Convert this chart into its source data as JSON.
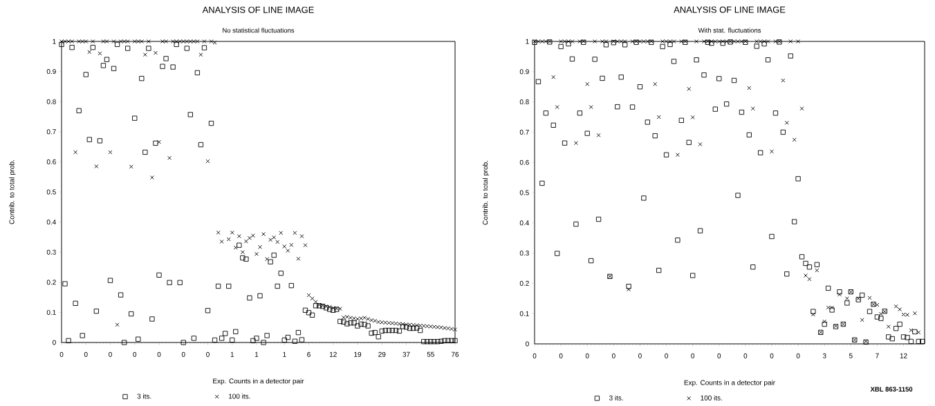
{
  "chart_data": [
    {
      "type": "scatter",
      "title": "ANALYSIS OF LINE IMAGE",
      "subtitle": "No statistical fluctuations",
      "xlabel": "Exp. Counts in a detector pair",
      "ylabel": "Contrib. to total prob.",
      "legend": "bottom",
      "categories": [
        "0",
        null,
        null,
        null,
        null,
        null,
        null,
        "0",
        null,
        null,
        null,
        null,
        null,
        null,
        "0",
        null,
        null,
        null,
        null,
        null,
        null,
        "0",
        null,
        null,
        null,
        null,
        null,
        null,
        "0",
        null,
        null,
        null,
        null,
        null,
        null,
        "0",
        null,
        null,
        null,
        null,
        null,
        null,
        "0",
        null,
        null,
        null,
        null,
        null,
        null,
        "1",
        null,
        null,
        null,
        null,
        null,
        null,
        "1",
        null,
        null,
        null,
        null,
        null,
        null,
        null,
        "1",
        null,
        null,
        null,
        null,
        null,
        null,
        "6",
        null,
        null,
        null,
        null,
        null,
        null,
        "12",
        null,
        null,
        null,
        null,
        null,
        null,
        "19",
        null,
        null,
        null,
        null,
        null,
        null,
        "29",
        null,
        null,
        null,
        null,
        null,
        null,
        "37",
        null,
        null,
        null,
        null,
        null,
        null,
        "55",
        null,
        null,
        null,
        null,
        null,
        null,
        "76"
      ],
      "ylim": [
        0,
        1
      ],
      "yticks": [
        0,
        0.1,
        0.2,
        0.3,
        0.4,
        0.5,
        0.6,
        0.7,
        0.8,
        0.9,
        1
      ],
      "series": [
        {
          "name": "3 its.",
          "color": "#000000",
          "marker": "square",
          "values": [
            0.99,
            0.195,
            0.006,
            0.98,
            0.13,
            0.77,
            0.023,
            0.89,
            0.674,
            0.98,
            0.104,
            0.67,
            0.92,
            0.94,
            0.206,
            0.91,
            0.99,
            0.158,
            0.0,
            0.977,
            0.095,
            0.745,
            0.011,
            0.877,
            0.632,
            0.977,
            0.078,
            0.662,
            0.224,
            0.917,
            0.943,
            0.199,
            0.915,
            0.99,
            0.199,
            0.0,
            0.977,
            0.757,
            0.014,
            0.896,
            0.657,
            0.979,
            0.106,
            0.728,
            0.008,
            0.187,
            0.014,
            0.03,
            0.187,
            0.008,
            0.036,
            0.323,
            0.281,
            0.277,
            0.148,
            0.006,
            0.014,
            0.155,
            0.0,
            0.023,
            0.268,
            0.29,
            0.187,
            0.23,
            0.008,
            0.017,
            0.189,
            0.004,
            0.033,
            0.009,
            0.107,
            0.099,
            0.091,
            0.122,
            0.122,
            0.12,
            0.115,
            0.11,
            0.107,
            0.11,
            0.07,
            0.068,
            0.062,
            0.065,
            0.065,
            0.055,
            0.061,
            0.06,
            0.055,
            0.031,
            0.033,
            0.019,
            0.038,
            0.04,
            0.04,
            0.04,
            0.04,
            0.038,
            0.053,
            0.051,
            0.047,
            0.047,
            0.048,
            0.04,
            0.003,
            0.003,
            0.003,
            0.003,
            0.003,
            0.004,
            0.006,
            0.006,
            0.006,
            0.006
          ]
        },
        {
          "name": "100 its.",
          "color": "#000000",
          "marker": "cross",
          "values": [
            1,
            1,
            1,
            1,
            0.632,
            1,
            1,
            1,
            0.965,
            1,
            0.585,
            0.96,
            1,
            1,
            0.632,
            1,
            0.059,
            1,
            1,
            1,
            0.584,
            1,
            1,
            1,
            0.956,
            1,
            0.548,
            0.962,
            0.666,
            1,
            1,
            0.613,
            1,
            1,
            1,
            1,
            1,
            1,
            1,
            1,
            0.956,
            1,
            0.602,
            1,
            0.996,
            0.365,
            0.335,
            null,
            0.343,
            0.365,
            0.315,
            0.353,
            0.3,
            0.336,
            0.347,
            0.355,
            0.294,
            0.317,
            0.36,
            0.277,
            0.341,
            0.349,
            0.334,
            0.364,
            0.319,
            0.305,
            0.324,
            0.364,
            0.278,
            0.353,
            0.323,
            0.157,
            0.146,
            0.135,
            0.125,
            0.123,
            0.12,
            0.118,
            0.115,
            0.113,
            0.112,
            0.083,
            0.085,
            0.082,
            0.08,
            0.078,
            0.08,
            0.082,
            0.078,
            0.074,
            0.072,
            0.068,
            0.067,
            0.066,
            0.065,
            0.064,
            0.063,
            0.062,
            0.061,
            0.06,
            0.059,
            0.058,
            0.057,
            0.056,
            0.055,
            0.054,
            0.053,
            0.052,
            0.051,
            0.05,
            0.048,
            0.047,
            0.045,
            0.043
          ]
        }
      ]
    },
    {
      "type": "scatter",
      "title": "ANALYSIS OF LINE IMAGE",
      "subtitle": "With stat. fluctuations",
      "xlabel": "Exp. Counts in a detector pair",
      "ylabel": "Contrib. to total prob.",
      "legend": "bottom",
      "annotations": [
        "XBL 863-1150"
      ],
      "categories": [
        "0",
        null,
        null,
        null,
        null,
        null,
        null,
        "0",
        null,
        null,
        null,
        null,
        null,
        null,
        "0",
        null,
        null,
        null,
        null,
        null,
        null,
        "0",
        null,
        null,
        null,
        null,
        null,
        null,
        "0",
        null,
        null,
        null,
        null,
        null,
        null,
        "0",
        null,
        null,
        null,
        null,
        null,
        null,
        "0",
        null,
        null,
        null,
        null,
        null,
        null,
        "0",
        null,
        null,
        null,
        null,
        null,
        null,
        "0",
        null,
        null,
        null,
        null,
        null,
        null,
        "0",
        null,
        null,
        null,
        null,
        null,
        null,
        "0",
        null,
        null,
        null,
        null,
        null,
        null,
        "3",
        null,
        null,
        null,
        null,
        null,
        null,
        "5",
        null,
        null,
        null,
        null,
        null,
        null,
        "7",
        null,
        null,
        null,
        null,
        null,
        null,
        "12",
        null,
        null,
        null,
        null,
        null
      ],
      "ylim": [
        0,
        1
      ],
      "yticks": [
        0,
        0.1,
        0.2,
        0.3,
        0.4,
        0.5,
        0.6,
        0.7,
        0.8,
        0.9,
        1
      ],
      "series": [
        {
          "name": "3 its.",
          "color": "#000000",
          "marker": "square",
          "values": [
            0.997,
            0.867,
            0.531,
            0.763,
            0.998,
            0.723,
            0.299,
            0.983,
            0.664,
            0.992,
            0.942,
            0.396,
            0.763,
            0.997,
            0.696,
            0.275,
            0.941,
            0.412,
            0.878,
            0.989,
            0.223,
            0.996,
            0.784,
            0.882,
            0.989,
            0.19,
            0.783,
            0.997,
            0.85,
            0.482,
            0.733,
            0.997,
            0.688,
            0.243,
            0.983,
            0.625,
            0.99,
            0.934,
            0.343,
            0.739,
            0.997,
            0.666,
            0.226,
            0.939,
            0.374,
            0.889,
            0.997,
            0.994,
            0.776,
            0.877,
            0.994,
            0.793,
            0.998,
            0.871,
            0.491,
            0.766,
            0.997,
            0.691,
            0.254,
            0.984,
            0.632,
            0.992,
            0.939,
            0.355,
            0.763,
            0.998,
            0.7,
            0.231,
            0.952,
            0.404,
            0.546,
            0.288,
            0.266,
            0.254,
            0.107,
            0.262,
            0.038,
            0.065,
            0.184,
            0.112,
            0.057,
            0.172,
            0.065,
            0.135,
            0.172,
            0.013,
            0.146,
            0.161,
            0.006,
            0.107,
            0.131,
            0.089,
            0.084,
            0.108,
            0.023,
            0.017,
            0.051,
            0.065,
            0.023,
            0.021,
            0.008,
            0.04,
            0.008,
            0.008
          ]
        },
        {
          "name": "100 its.",
          "color": "#000000",
          "marker": "cross",
          "values": [
            1,
            1,
            1,
            1,
            1,
            0.882,
            0.783,
            1,
            1,
            1,
            1,
            0.664,
            1,
            1,
            0.859,
            0.783,
            1,
            0.69,
            1,
            1,
            0.223,
            1,
            1,
            1,
            1,
            0.18,
            1,
            1,
            1,
            1,
            1,
            1,
            0.859,
            0.75,
            1,
            1,
            1,
            1,
            0.625,
            1,
            1,
            0.843,
            0.749,
            1,
            0.66,
            1,
            1,
            1,
            1,
            1,
            1,
            1,
            1,
            1,
            1,
            1,
            1,
            0.846,
            0.778,
            1,
            1,
            1,
            1,
            0.636,
            1,
            1,
            0.871,
            0.731,
            1,
            0.675,
            1,
            0.778,
            0.226,
            0.214,
            0.097,
            0.243,
            0.038,
            0.074,
            0.12,
            0.12,
            0.059,
            0.163,
            0.065,
            0.15,
            0.172,
            0.013,
            0.15,
            0.079,
            0.008,
            0.152,
            0.131,
            0.129,
            0.099,
            0.107,
            0.057,
            null,
            0.124,
            0.114,
            0.097,
            0.096,
            0.045,
            0.101,
            0.038,
            null
          ]
        }
      ]
    }
  ]
}
